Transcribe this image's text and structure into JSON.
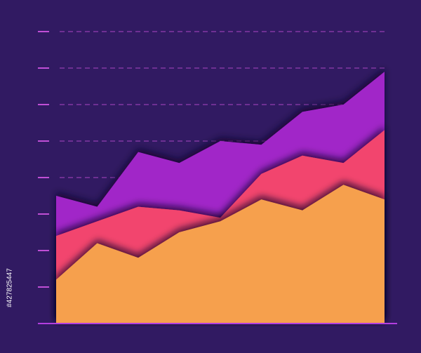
{
  "chart_data": {
    "type": "area",
    "stacked": true,
    "x": [
      0,
      1,
      2,
      3,
      4,
      5,
      6,
      7,
      8
    ],
    "xlim": [
      0,
      8
    ],
    "series": [
      {
        "color": "#f6a04d",
        "values": [
          1.2,
          2.2,
          1.8,
          2.5,
          2.8,
          3.4,
          3.1,
          3.8,
          3.4
        ]
      },
      {
        "color": "#f2446e",
        "values": [
          1.2,
          0.6,
          1.4,
          0.6,
          0.1,
          0.7,
          1.5,
          0.6,
          1.9
        ]
      },
      {
        "color": "#a126c8",
        "values": [
          1.1,
          0.4,
          1.5,
          1.3,
          2.1,
          0.8,
          1.2,
          1.6,
          1.6
        ]
      }
    ],
    "ylim": [
      0,
      8
    ],
    "yticks": [
      0,
      1,
      2,
      3,
      4,
      5,
      6,
      7,
      8
    ],
    "grid": true,
    "grid_color": "#c04fd6",
    "axis_color": "#b33fe0",
    "background": "#311a62"
  },
  "stock_id": "#427825447"
}
